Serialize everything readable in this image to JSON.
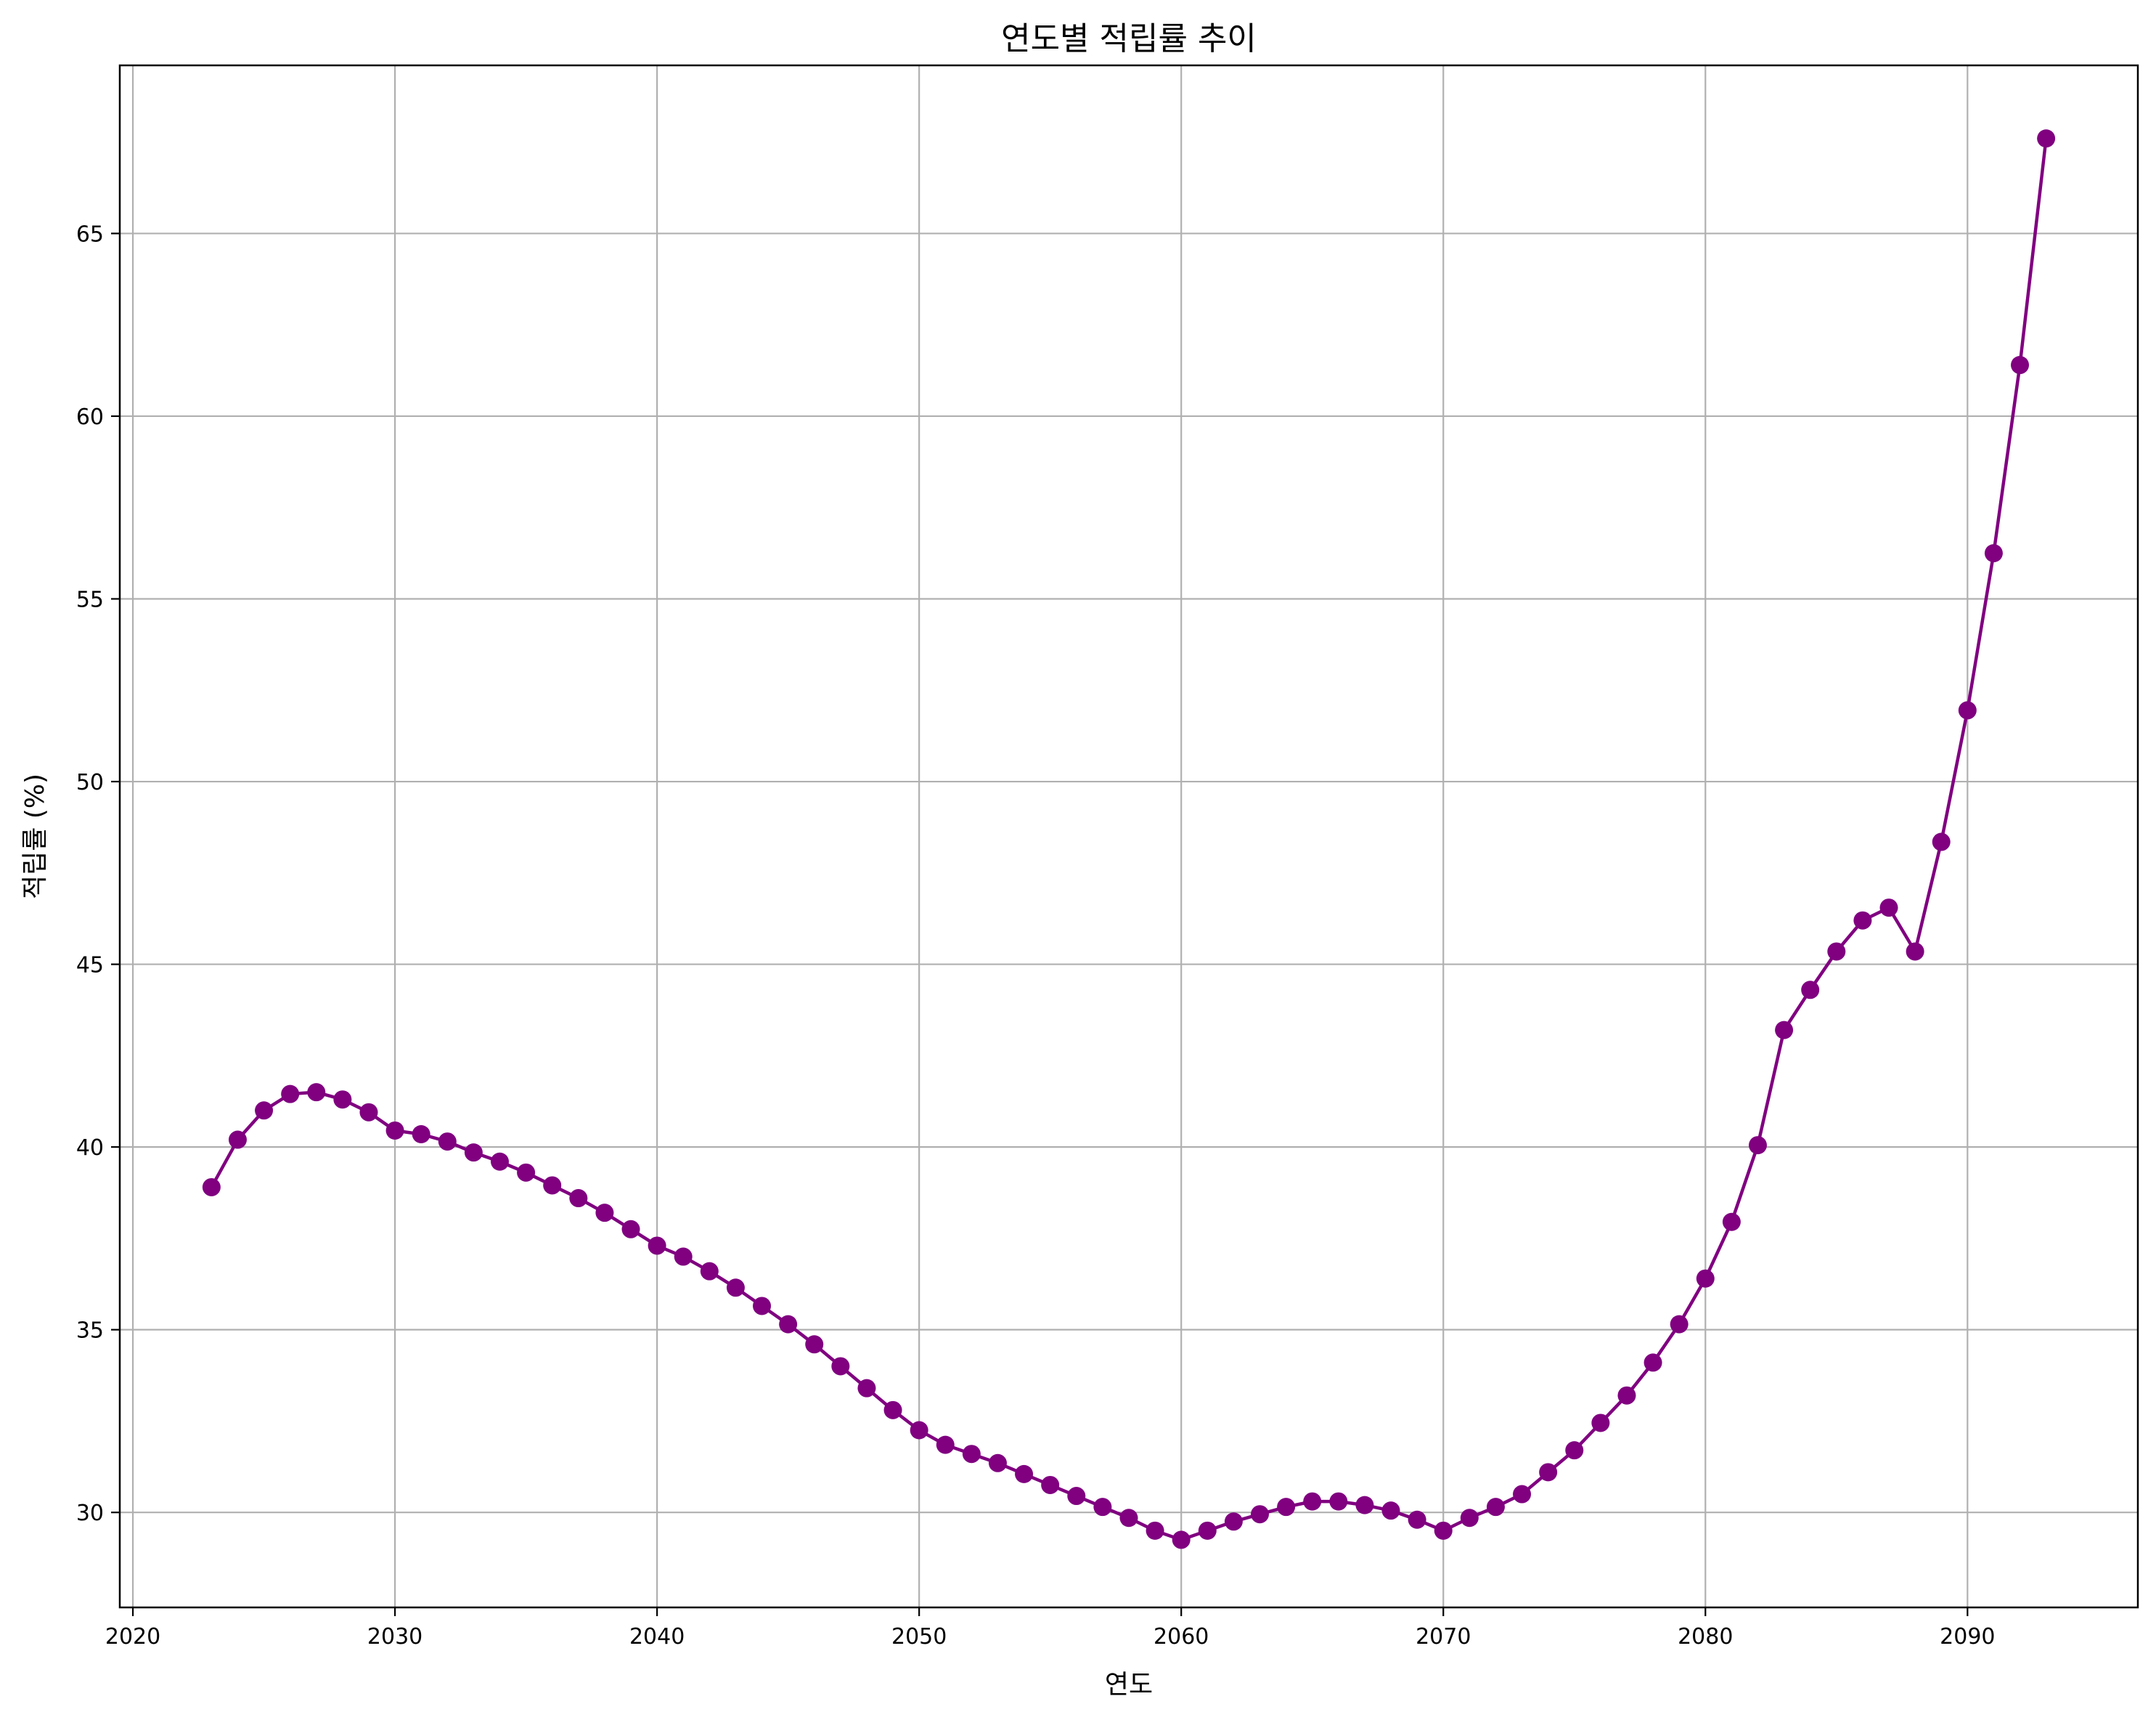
{
  "chart_data": {
    "type": "line",
    "title": "연도별 적립률 추이",
    "xlabel": "연도",
    "ylabel": "적립률 (%)",
    "xlim": [
      2019.5,
      2096.5
    ],
    "ylim": [
      27.4,
      69.6
    ],
    "x_ticks": [
      "2020",
      "2030",
      "2040",
      "2050",
      "2060",
      "2070",
      "2080",
      "2090"
    ],
    "y_ticks": [
      "30",
      "35",
      "40",
      "45",
      "50",
      "55",
      "60",
      "65"
    ],
    "grid": true,
    "colors": {
      "series": "#800080",
      "grid": "#b0b0b0",
      "axis": "#000000"
    },
    "series": [
      {
        "marker": "circle",
        "x": [
          2023,
          2024,
          2025,
          2026,
          2027,
          2028,
          2029,
          2030,
          2031,
          2032,
          2033,
          2034,
          2035,
          2036,
          2037,
          2038,
          2039,
          2040,
          2041,
          2042,
          2043,
          2044,
          2045,
          2046,
          2047,
          2048,
          2049,
          2050,
          2051,
          2052,
          2053,
          2054,
          2055,
          2056,
          2057,
          2058,
          2059,
          2060,
          2061,
          2062,
          2063,
          2064,
          2065,
          2066,
          2067,
          2068,
          2069,
          2070,
          2071,
          2072,
          2073,
          2074,
          2075,
          2076,
          2077,
          2078,
          2079,
          2080,
          2081,
          2082,
          2083,
          2084,
          2085,
          2086,
          2087,
          2088,
          2089,
          2090,
          2091,
          2092,
          2093
        ],
        "y": [
          38.9,
          40.2,
          41.0,
          41.45,
          41.5,
          41.3,
          40.95,
          40.45,
          40.35,
          40.15,
          39.85,
          39.6,
          39.3,
          38.95,
          38.6,
          38.2,
          37.75,
          37.3,
          37.0,
          36.6,
          36.15,
          35.65,
          35.15,
          34.6,
          34.0,
          33.4,
          32.8,
          32.25,
          31.85,
          31.6,
          31.35,
          31.05,
          30.75,
          30.45,
          30.15,
          29.85,
          29.5,
          29.25,
          29.5,
          29.75,
          29.95,
          30.15,
          30.3,
          30.3,
          30.2,
          30.05,
          29.8,
          29.5,
          29.85,
          30.15,
          30.5,
          31.1,
          31.7,
          32.45,
          33.2,
          34.1,
          35.15,
          36.4,
          37.95,
          40.05,
          43.2,
          44.3,
          45.35,
          46.2,
          46.55,
          45.35,
          48.35,
          51.95,
          56.25,
          61.4,
          67.6
        ]
      }
    ]
  }
}
